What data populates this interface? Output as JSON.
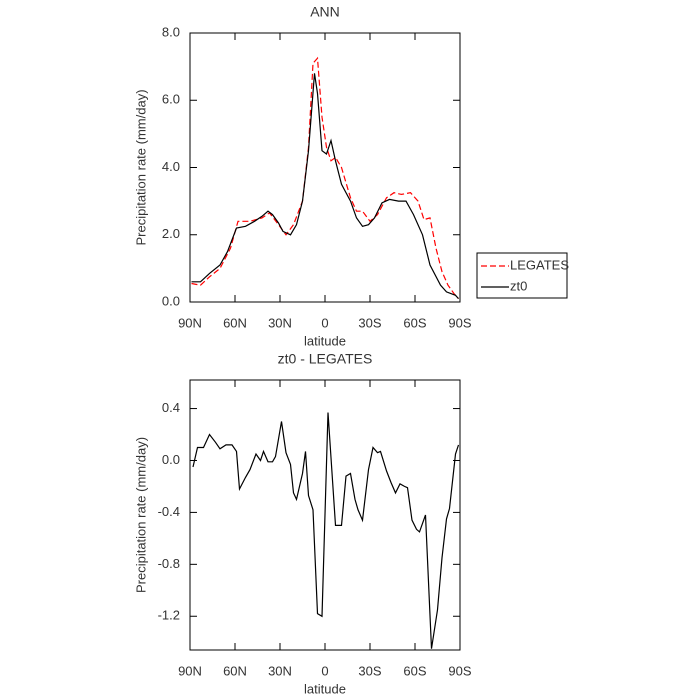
{
  "chart_data": [
    {
      "type": "line",
      "title": "ANN",
      "xlabel": "latitude",
      "ylabel": "Precipitation rate (mm/day)",
      "xlim": [
        90,
        -90
      ],
      "xticks": [
        {
          "value": 90,
          "label": "90N"
        },
        {
          "value": 60,
          "label": "60N"
        },
        {
          "value": 30,
          "label": "30N"
        },
        0,
        {
          "value": -30,
          "label": "30S"
        },
        {
          "value": -60,
          "label": "60S"
        },
        {
          "value": -90,
          "label": "90S"
        }
      ],
      "ylim": [
        0,
        8
      ],
      "yticks": [
        {
          "value": 0,
          "label": "0.0"
        },
        {
          "value": 2,
          "label": "2.0"
        },
        {
          "value": 4,
          "label": "4.0"
        },
        {
          "value": 6,
          "label": "6.0"
        },
        {
          "value": 8,
          "label": "8.0"
        }
      ],
      "legend": "outside-right",
      "series": [
        {
          "name": "LEGATES",
          "color": "#ff0000",
          "dash": true,
          "x": [
            89,
            83,
            77,
            70,
            63,
            58,
            50,
            42,
            37,
            31,
            26,
            21,
            15,
            11,
            8,
            5,
            2,
            -1,
            -4,
            -7,
            -11,
            -17,
            -21,
            -25,
            -30,
            -35,
            -41,
            -46,
            -51,
            -57,
            -62,
            -66,
            -70,
            -74,
            -78,
            -82,
            -86,
            -89
          ],
          "values": [
            0.55,
            0.5,
            0.75,
            1.0,
            1.6,
            2.4,
            2.4,
            2.5,
            2.65,
            2.3,
            2.0,
            2.3,
            3.0,
            4.6,
            7.1,
            7.25,
            5.5,
            4.6,
            4.2,
            4.3,
            4.0,
            3.1,
            2.7,
            2.7,
            2.4,
            2.6,
            3.1,
            3.25,
            3.2,
            3.25,
            3.0,
            2.45,
            2.5,
            1.6,
            0.9,
            0.5,
            0.25,
            0.1
          ]
        },
        {
          "name": "zt0",
          "color": "#000000",
          "dash": false,
          "x": [
            89,
            83,
            77,
            70,
            65,
            59,
            53,
            47,
            42,
            38,
            35,
            31,
            28,
            23,
            19,
            15,
            11,
            7,
            5,
            2,
            -1,
            -4,
            -7,
            -11,
            -17,
            -21,
            -25,
            -29,
            -33,
            -38,
            -43,
            -49,
            -54,
            -59,
            -65,
            -70,
            -77,
            -81,
            -87,
            -89
          ],
          "values": [
            0.6,
            0.6,
            0.85,
            1.1,
            1.5,
            2.2,
            2.25,
            2.4,
            2.55,
            2.7,
            2.6,
            2.35,
            2.1,
            2.0,
            2.3,
            3.0,
            4.5,
            6.8,
            6.2,
            4.5,
            4.4,
            4.8,
            4.2,
            3.5,
            3.0,
            2.5,
            2.25,
            2.3,
            2.5,
            2.95,
            3.05,
            3.0,
            3.0,
            2.6,
            2.0,
            1.1,
            0.5,
            0.3,
            0.2,
            0.1
          ]
        }
      ]
    },
    {
      "type": "line",
      "title": "zt0 - LEGATES",
      "xlabel": "latitude",
      "ylabel": "Precipitation rate (mm/day)",
      "xlim": [
        90,
        -90
      ],
      "xticks": [
        {
          "value": 90,
          "label": "90N"
        },
        {
          "value": 60,
          "label": "60N"
        },
        {
          "value": 30,
          "label": "30N"
        },
        0,
        {
          "value": -30,
          "label": "30S"
        },
        {
          "value": -60,
          "label": "60S"
        },
        {
          "value": -90,
          "label": "90S"
        }
      ],
      "ylim": [
        -1.46,
        0.62
      ],
      "yticks": [
        {
          "value": -1.2,
          "label": "-1.2"
        },
        {
          "value": -0.8,
          "label": "-0.8"
        },
        {
          "value": -0.4,
          "label": "-0.4"
        },
        {
          "value": 0,
          "label": "0.0"
        },
        {
          "value": 0.4,
          "label": "0.4"
        }
      ],
      "series": [
        {
          "color": "#000000",
          "dash": false,
          "x": [
            88,
            85,
            81,
            77,
            73,
            70,
            66,
            62,
            59,
            57,
            53,
            50,
            46,
            43,
            41,
            38,
            35,
            33,
            29,
            26,
            23,
            21,
            19,
            15,
            13,
            11,
            8,
            5,
            2,
            -2,
            -7,
            -11,
            -14,
            -17,
            -20,
            -22,
            -25,
            -29,
            -32,
            -35,
            -37,
            -41,
            -44,
            -47,
            -50,
            -53,
            -55,
            -58,
            -61,
            -63,
            -67,
            -71,
            -75,
            -78,
            -81,
            -83,
            -87,
            -89
          ],
          "values": [
            -0.05,
            0.1,
            0.1,
            0.2,
            0.14,
            0.09,
            0.12,
            0.12,
            0.07,
            -0.22,
            -0.13,
            -0.07,
            0.05,
            0.0,
            0.07,
            -0.01,
            -0.01,
            0.03,
            0.3,
            0.06,
            -0.03,
            -0.25,
            -0.3,
            -0.1,
            0.07,
            -0.27,
            -0.38,
            -1.18,
            -1.2,
            0.37,
            -0.5,
            -0.5,
            -0.12,
            -0.1,
            -0.3,
            -0.38,
            -0.46,
            -0.07,
            0.1,
            0.06,
            0.07,
            -0.08,
            -0.17,
            -0.25,
            -0.18,
            -0.2,
            -0.21,
            -0.46,
            -0.53,
            -0.55,
            -0.42,
            -1.45,
            -1.15,
            -0.75,
            -0.45,
            -0.37,
            0.05,
            0.12
          ]
        }
      ]
    }
  ]
}
